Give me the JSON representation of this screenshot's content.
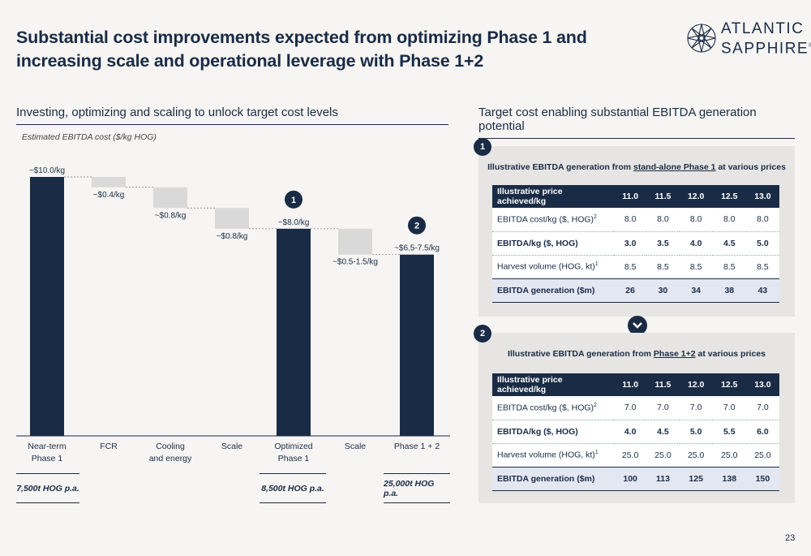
{
  "title": "Substantial cost improvements expected from optimizing Phase 1 and increasing scale and operational leverage with Phase 1+2",
  "logo": {
    "line1": "ATLANTIC",
    "line2": "SAPPHIRE",
    "mark": "®"
  },
  "left_section": {
    "title": "Investing, optimizing and scaling to unlock target cost levels",
    "subtitle": "Estimated EBITDA cost ($/kg HOG)"
  },
  "chart_data": {
    "type": "bar",
    "subtype": "waterfall",
    "ylabel": "Estimated EBITDA cost ($/kg HOG)",
    "ylim": [
      0,
      10
    ],
    "grid": false,
    "legend": "none",
    "categories": [
      "Near-term\nPhase 1",
      "FCR",
      "Cooling\nand energy",
      "Scale",
      "Optimized\nPhase 1",
      "Scale",
      "Phase 1 + 2"
    ],
    "bars": [
      {
        "kind": "total",
        "start": 0,
        "end": 10.0,
        "label": "~$10.0/kg"
      },
      {
        "kind": "step",
        "start": 10.0,
        "end": 9.6,
        "label": "~$0.4/kg"
      },
      {
        "kind": "step",
        "start": 9.6,
        "end": 8.8,
        "label": "~$0.8/kg"
      },
      {
        "kind": "step",
        "start": 8.8,
        "end": 8.0,
        "label": "~$0.8/kg"
      },
      {
        "kind": "total",
        "start": 0,
        "end": 8.0,
        "label": "~$8.0/kg",
        "badge": "1"
      },
      {
        "kind": "step",
        "start": 8.0,
        "end": 7.0,
        "label": "~$0.5-1.5/kg"
      },
      {
        "kind": "total",
        "start": 0,
        "end": 7.0,
        "label": "~$6.5-7.5/kg",
        "badge": "2"
      }
    ],
    "colors": {
      "total": "#1a2b45",
      "step": "#d9d9d9"
    }
  },
  "footers": [
    "7,500t HOG p.a.",
    "8,500t HOG p.a.",
    "25,000t HOG p.a."
  ],
  "right_section": {
    "title": "Target cost enabling substantial EBITDA generation potential"
  },
  "panel1": {
    "badge": "1",
    "title_pre": "Illustrative EBITDA generation from ",
    "title_link": "stand-alone Phase 1",
    "title_post": " at various prices",
    "header": [
      "Illustrative price achieved/kg",
      "11.0",
      "11.5",
      "12.0",
      "12.5",
      "13.0"
    ],
    "rows": [
      {
        "label": "EBITDA cost/kg ($, HOG)",
        "sup": "2",
        "values": [
          "8.0",
          "8.0",
          "8.0",
          "8.0",
          "8.0"
        ],
        "style": "normal"
      },
      {
        "label": "EBITDA/kg ($, HOG)",
        "sup": "",
        "values": [
          "3.0",
          "3.5",
          "4.0",
          "4.5",
          "5.0"
        ],
        "style": "bold"
      },
      {
        "label": "Harvest volume (HOG, kt)",
        "sup": "1",
        "values": [
          "8.5",
          "8.5",
          "8.5",
          "8.5",
          "8.5"
        ],
        "style": "normal"
      },
      {
        "label": "EBITDA generation ($m)",
        "sup": "",
        "values": [
          "26",
          "30",
          "34",
          "38",
          "43"
        ],
        "style": "gen"
      }
    ]
  },
  "panel2": {
    "badge": "2",
    "title_pre": "Illustrative EBITDA generation from ",
    "title_link": "Phase 1+2",
    "title_post": " at various prices",
    "header": [
      "Illustrative price achieved/kg",
      "11.0",
      "11.5",
      "12.0",
      "12.5",
      "13.0"
    ],
    "rows": [
      {
        "label": "EBITDA cost/kg ($, HOG)",
        "sup": "2",
        "values": [
          "7.0",
          "7.0",
          "7.0",
          "7.0",
          "7.0"
        ],
        "style": "normal"
      },
      {
        "label": "EBITDA/kg ($, HOG)",
        "sup": "",
        "values": [
          "4.0",
          "4.5",
          "5.0",
          "5.5",
          "6.0"
        ],
        "style": "bold"
      },
      {
        "label": "Harvest volume (HOG, kt)",
        "sup": "1",
        "values": [
          "25.0",
          "25.0",
          "25.0",
          "25.0",
          "25.0"
        ],
        "style": "normal"
      },
      {
        "label": "EBITDA generation ($m)",
        "sup": "",
        "values": [
          "100",
          "113",
          "125",
          "138",
          "150"
        ],
        "style": "gen"
      }
    ]
  },
  "connector_icon": "chevron-down-icon",
  "page_number": "23"
}
